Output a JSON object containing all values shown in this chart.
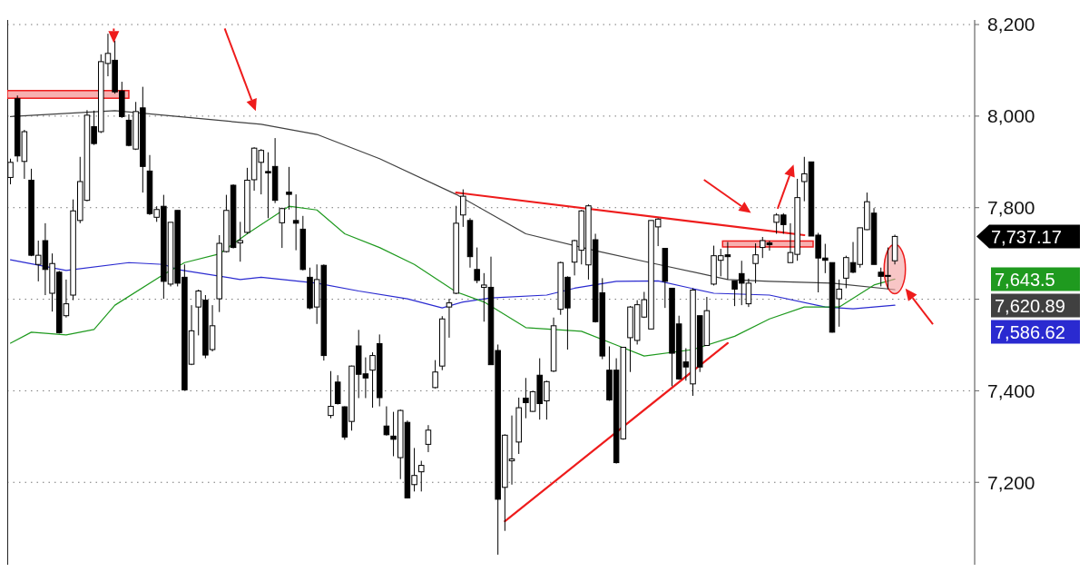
{
  "chart_data": {
    "type": "candlestick",
    "categories": [
      null,
      null,
      null,
      null,
      null,
      null,
      null,
      null,
      null,
      null,
      null,
      null,
      null,
      null,
      null,
      null,
      null,
      null,
      null,
      null,
      null,
      null,
      null,
      null,
      null,
      null,
      null,
      null,
      null,
      null,
      null,
      null,
      null,
      null,
      null,
      null,
      null,
      null,
      null,
      null,
      null,
      null,
      null,
      null,
      null,
      null,
      null,
      null,
      null,
      null,
      null,
      null,
      null,
      null,
      null,
      null,
      null,
      null,
      null,
      null,
      null,
      null,
      null,
      null,
      null,
      null,
      null,
      null,
      null,
      null,
      null,
      null,
      null,
      null,
      null,
      null,
      null,
      null,
      null,
      null,
      null,
      null,
      null,
      null,
      null,
      null,
      null,
      null,
      null,
      null,
      null,
      null,
      null,
      null,
      null,
      null,
      null,
      null,
      null,
      null,
      null,
      null,
      null,
      null,
      null,
      null,
      null,
      null,
      null,
      null,
      null,
      null,
      null,
      null,
      null,
      null,
      null,
      null,
      null,
      null,
      null,
      null,
      null,
      null,
      null,
      null,
      null,
      null,
      null,
      null,
      null,
      null,
      null,
      null,
      null,
      null,
      null,
      null,
      null
    ],
    "ohlc": [
      [
        7866,
        7907,
        7851,
        7899
      ],
      [
        8038,
        8045,
        7900,
        7913
      ],
      [
        7901,
        7970,
        7863,
        7966
      ],
      [
        7860,
        7885,
        7694,
        7696
      ],
      [
        7676,
        7728,
        7639,
        7696
      ],
      [
        7728,
        7766,
        7609,
        7665
      ],
      [
        7613,
        7700,
        7573,
        7678
      ],
      [
        7659,
        7662,
        7525,
        7527
      ],
      [
        7564,
        7643,
        7560,
        7590
      ],
      [
        7609,
        7818,
        7598,
        7793
      ],
      [
        7772,
        7911,
        7766,
        7857
      ],
      [
        7816,
        8013,
        7814,
        8002
      ],
      [
        7977,
        8012,
        7937,
        7940
      ],
      [
        7966,
        8135,
        7963,
        8119
      ],
      [
        8115,
        8180,
        8087,
        8137
      ],
      [
        8122,
        8165,
        8049,
        8053
      ],
      [
        8055,
        8075,
        7996,
        7999
      ],
      [
        7991,
        8004,
        7934,
        7936
      ],
      [
        7928,
        8031,
        7926,
        8010
      ],
      [
        8018,
        8064,
        7833,
        7890
      ],
      [
        7880,
        7915,
        7784,
        7787
      ],
      [
        7779,
        7803,
        7769,
        7796
      ],
      [
        7803,
        7828,
        7601,
        7639
      ],
      [
        7633,
        7768,
        7628,
        7768
      ],
      [
        7794,
        7794,
        7628,
        7635
      ],
      [
        7648,
        7676,
        7402,
        7402
      ],
      [
        7458,
        7587,
        7456,
        7531
      ],
      [
        7583,
        7621,
        7521,
        7618
      ],
      [
        7598,
        7609,
        7471,
        7478
      ],
      [
        7490,
        7587,
        7486,
        7542
      ],
      [
        7601,
        7740,
        7572,
        7722
      ],
      [
        7704,
        7828,
        7702,
        7794
      ],
      [
        7849,
        7851,
        7711,
        7713
      ],
      [
        7723,
        7769,
        7682,
        7728
      ],
      [
        7746,
        7887,
        7743,
        7860
      ],
      [
        7861,
        7932,
        7837,
        7930
      ],
      [
        7899,
        7928,
        7829,
        7925
      ],
      [
        7879,
        7921,
        7777,
        7876
      ],
      [
        7890,
        7952,
        7810,
        7816
      ],
      [
        7767,
        7800,
        7712,
        7798
      ],
      [
        7834,
        7889,
        7796,
        7829
      ],
      [
        7772,
        7829,
        7707,
        7766
      ],
      [
        7753,
        7782,
        7663,
        7665
      ],
      [
        7648,
        7669,
        7578,
        7581
      ],
      [
        7583,
        7676,
        7546,
        7643
      ],
      [
        7674,
        7676,
        7466,
        7477
      ],
      [
        7346,
        7443,
        7340,
        7366
      ],
      [
        7419,
        7434,
        7370,
        7372
      ],
      [
        7365,
        7366,
        7293,
        7299
      ],
      [
        7333,
        7455,
        7313,
        7454
      ],
      [
        7498,
        7533,
        7384,
        7436
      ],
      [
        7437,
        7473,
        7384,
        7428
      ],
      [
        7445,
        7484,
        7363,
        7477
      ],
      [
        7503,
        7523,
        7366,
        7385
      ],
      [
        7323,
        7366,
        7302,
        7304
      ],
      [
        7301,
        7354,
        7257,
        7294
      ],
      [
        7254,
        7359,
        7207,
        7357
      ],
      [
        7331,
        7335,
        7165,
        7166
      ],
      [
        7195,
        7275,
        7180,
        7215
      ],
      [
        7223,
        7247,
        7180,
        7237
      ],
      [
        7283,
        7325,
        7266,
        7314
      ],
      [
        7407,
        7467,
        7405,
        7441
      ],
      [
        7454,
        7563,
        7445,
        7557
      ],
      [
        7583,
        7601,
        7516,
        7592
      ],
      [
        7613,
        7804,
        7611,
        7766
      ],
      [
        7784,
        7840,
        7758,
        7825
      ],
      [
        7772,
        7777,
        7669,
        7693
      ],
      [
        7665,
        7713,
        7635,
        7641
      ],
      [
        7626,
        7657,
        7551,
        7631
      ],
      [
        7626,
        7693,
        7457,
        7457
      ],
      [
        7488,
        7501,
        7042,
        7163
      ],
      [
        7189,
        7305,
        7094,
        7303
      ],
      [
        7247,
        7346,
        7195,
        7251
      ],
      [
        7288,
        7385,
        7262,
        7363
      ],
      [
        7384,
        7428,
        7340,
        7374
      ],
      [
        7355,
        7398,
        7354,
        7398
      ],
      [
        7434,
        7471,
        7337,
        7372
      ],
      [
        7378,
        7422,
        7337,
        7420
      ],
      [
        7443,
        7560,
        7441,
        7542
      ],
      [
        7578,
        7682,
        7566,
        7680
      ],
      [
        7648,
        7650,
        7490,
        7581
      ],
      [
        7681,
        7730,
        7652,
        7728
      ],
      [
        7707,
        7795,
        7676,
        7793
      ],
      [
        7675,
        7807,
        7643,
        7804
      ],
      [
        7730,
        7743,
        7549,
        7551
      ],
      [
        7614,
        7646,
        7469,
        7476
      ],
      [
        7445,
        7497,
        7378,
        7380
      ],
      [
        7445,
        7471,
        7241,
        7243
      ],
      [
        7295,
        7495,
        7293,
        7495
      ],
      [
        7516,
        7585,
        7441,
        7583
      ],
      [
        7510,
        7598,
        7501,
        7588
      ],
      [
        7561,
        7616,
        7559,
        7599
      ],
      [
        7535,
        7772,
        7535,
        7772
      ],
      [
        7758,
        7777,
        7716,
        7775
      ],
      [
        7711,
        7711,
        7581,
        7639
      ],
      [
        7624,
        7624,
        7410,
        7482
      ],
      [
        7546,
        7564,
        7424,
        7426
      ],
      [
        7463,
        7493,
        7422,
        7452
      ],
      [
        7415,
        7624,
        7389,
        7620
      ],
      [
        7564,
        7564,
        7441,
        7452
      ],
      [
        7499,
        7605,
        7498,
        7575
      ],
      [
        7633,
        7717,
        7630,
        7695
      ],
      [
        7685,
        7710,
        7650,
        7695
      ],
      [
        7697,
        7725,
        7643,
        7693
      ],
      [
        7640,
        7640,
        7585,
        7622
      ],
      [
        7656,
        7684,
        7587,
        7635
      ],
      [
        7590,
        7645,
        7583,
        7635
      ],
      [
        7678,
        7722,
        7635,
        7697
      ],
      [
        7713,
        7736,
        7690,
        7728
      ],
      [
        7723,
        7728,
        7706,
        7719
      ],
      [
        7768,
        7788,
        7743,
        7784
      ],
      [
        7784,
        7788,
        7743,
        7763
      ],
      [
        7680,
        7766,
        7680,
        7702
      ],
      [
        7698,
        7863,
        7684,
        7822
      ],
      [
        7857,
        7911,
        7814,
        7874
      ],
      [
        7900,
        7900,
        7738,
        7738
      ],
      [
        7740,
        7745,
        7615,
        7690
      ],
      [
        7690,
        7721,
        7657,
        7685
      ],
      [
        7680,
        7680,
        7527,
        7528
      ],
      [
        7601,
        7643,
        7540,
        7622
      ],
      [
        7646,
        7695,
        7624,
        7691
      ],
      [
        7680,
        7725,
        7657,
        7659
      ],
      [
        7676,
        7756,
        7669,
        7756
      ],
      [
        7752,
        7833,
        7751,
        7813
      ],
      [
        7788,
        7799,
        7676,
        7676
      ],
      [
        7659,
        7669,
        7628,
        7650
      ],
      [
        7652,
        7713,
        7622,
        7650
      ],
      [
        7684,
        7741,
        7676,
        7737.17
      ],
      null,
      null,
      null,
      null,
      null,
      null,
      null,
      null,
      null,
      null,
      null
    ],
    "series": [
      {
        "type": "line",
        "color": "#404040",
        "values": [
          7999,
          null,
          null,
          null,
          null,
          null,
          null,
          null,
          null,
          null,
          null,
          null,
          null,
          null,
          null,
          8012,
          null,
          null,
          null,
          null,
          null,
          null,
          null,
          null,
          null,
          null,
          null,
          null,
          null,
          null,
          null,
          null,
          null,
          null,
          null,
          null,
          7982,
          null,
          null,
          null,
          null,
          null,
          null,
          null,
          7960,
          null,
          null,
          null,
          null,
          null,
          null,
          null,
          null,
          7907,
          null,
          null,
          null,
          null,
          null,
          null,
          null,
          null,
          null,
          null,
          7829,
          null,
          null,
          null,
          null,
          null,
          null,
          null,
          null,
          null,
          7743,
          null,
          null,
          null,
          null,
          null,
          null,
          null,
          null,
          null,
          7706,
          null,
          null,
          null,
          null,
          null,
          null,
          null,
          null,
          7676,
          null,
          null,
          null,
          null,
          null,
          null,
          null,
          null,
          null,
          7643,
          null,
          null,
          null,
          null,
          null,
          7639,
          null,
          null,
          null,
          null,
          null,
          null,
          null,
          null,
          7635,
          null,
          null,
          null,
          null,
          null,
          null,
          null,
          null,
          7621,
          null,
          null,
          null,
          null,
          null,
          null,
          null,
          null,
          null,
          null,
          null
        ]
      },
      {
        "type": "line",
        "color": "#2a2ad0",
        "values": [
          7686,
          null,
          null,
          null,
          null,
          null,
          null,
          null,
          7663,
          null,
          null,
          null,
          null,
          null,
          null,
          null,
          null,
          7680,
          null,
          null,
          null,
          null,
          7676,
          null,
          7665,
          null,
          null,
          null,
          null,
          null,
          null,
          null,
          null,
          7643,
          null,
          null,
          7648,
          null,
          null,
          null,
          null,
          null,
          null,
          null,
          7635,
          null,
          null,
          null,
          null,
          null,
          7618,
          null,
          null,
          null,
          null,
          null,
          null,
          7601,
          null,
          null,
          null,
          null,
          7581,
          null,
          null,
          7594,
          null,
          null,
          null,
          7603,
          null,
          null,
          null,
          null,
          null,
          null,
          null,
          7609,
          null,
          null,
          null,
          7624,
          null,
          null,
          null,
          null,
          null,
          7639,
          null,
          null,
          null,
          null,
          null,
          7640,
          null,
          null,
          null,
          null,
          null,
          null,
          null,
          7613,
          null,
          null,
          null,
          null,
          null,
          null,
          null,
          7609,
          null,
          null,
          null,
          null,
          null,
          null,
          null,
          7583,
          null,
          null,
          null,
          7579,
          null,
          null,
          null,
          null,
          null,
          7587,
          null,
          null,
          null,
          null,
          null,
          null,
          null,
          null,
          null,
          null,
          null
        ]
      },
      {
        "type": "line",
        "color": "#1f9a1f",
        "values": [
          7504,
          null,
          null,
          7528,
          null,
          null,
          null,
          null,
          7522,
          null,
          null,
          null,
          7534,
          null,
          null,
          7587,
          null,
          null,
          null,
          null,
          null,
          null,
          7654,
          null,
          null,
          7680,
          null,
          null,
          null,
          null,
          7699,
          null,
          null,
          null,
          7743,
          null,
          null,
          null,
          null,
          null,
          7803,
          null,
          null,
          null,
          7795,
          null,
          null,
          null,
          7743,
          null,
          null,
          null,
          null,
          7713,
          null,
          null,
          null,
          null,
          7676,
          null,
          null,
          null,
          null,
          null,
          7616,
          null,
          null,
          null,
          7594,
          null,
          null,
          null,
          null,
          null,
          7538,
          null,
          null,
          null,
          null,
          null,
          null,
          null,
          7530,
          null,
          null,
          null,
          null,
          7500,
          null,
          null,
          null,
          7476,
          null,
          null,
          null,
          null,
          null,
          null,
          7490,
          null,
          null,
          null,
          null,
          null,
          7519,
          null,
          null,
          null,
          null,
          7557,
          null,
          null,
          null,
          null,
          7583,
          null,
          null,
          null,
          null,
          7583,
          null,
          null,
          null,
          null,
          7631,
          null,
          null,
          7644,
          null,
          null,
          null,
          null,
          null,
          null,
          null,
          null,
          null,
          null,
          null
        ]
      },
      {
        "type": "line",
        "color": "#ee1c1c",
        "values": [
          null,
          null,
          null,
          null,
          null,
          null,
          null,
          null,
          null,
          null,
          null,
          null,
          null,
          null,
          null,
          null,
          null,
          null,
          null,
          null,
          null,
          null,
          null,
          null,
          null,
          null,
          null,
          null,
          null,
          null,
          null,
          null,
          null,
          null,
          null,
          null,
          null,
          null,
          null,
          null,
          null,
          null,
          null,
          null,
          null,
          null,
          null,
          null,
          null,
          null,
          null,
          null,
          null,
          null,
          null,
          null,
          null,
          null,
          null,
          null,
          null,
          null,
          null,
          null,
          7833,
          null,
          null,
          null,
          null,
          null,
          null,
          null,
          null,
          null,
          null,
          null,
          null,
          null,
          null,
          null,
          null,
          null,
          null,
          null,
          null,
          null,
          null,
          null,
          null,
          null,
          null,
          null,
          null,
          null,
          null,
          null,
          null,
          null,
          null,
          null,
          null,
          null,
          null,
          null,
          null,
          null,
          null,
          null,
          null,
          null,
          null,
          null,
          null,
          null,
          7740,
          null,
          null,
          null,
          null,
          null,
          null,
          null,
          null,
          null,
          null,
          null,
          null,
          null,
          null,
          null,
          null,
          null,
          null,
          null,
          null,
          null,
          null,
          null,
          null
        ]
      },
      {
        "type": "line",
        "color": "#ee1c1c",
        "values": [
          null,
          null,
          null,
          null,
          null,
          null,
          null,
          null,
          null,
          null,
          null,
          null,
          null,
          null,
          null,
          null,
          null,
          null,
          null,
          null,
          null,
          null,
          null,
          null,
          null,
          null,
          null,
          null,
          null,
          null,
          null,
          null,
          null,
          null,
          null,
          null,
          null,
          null,
          null,
          null,
          null,
          null,
          null,
          null,
          null,
          null,
          null,
          null,
          null,
          null,
          null,
          null,
          null,
          null,
          null,
          null,
          null,
          null,
          null,
          null,
          null,
          null,
          null,
          null,
          null,
          null,
          null,
          null,
          null,
          null,
          null,
          7115,
          null,
          null,
          null,
          null,
          null,
          null,
          null,
          null,
          null,
          null,
          null,
          null,
          null,
          null,
          null,
          null,
          null,
          null,
          null,
          null,
          null,
          null,
          null,
          null,
          null,
          null,
          null,
          null,
          null,
          null,
          null,
          7504,
          null,
          null,
          null,
          null,
          null,
          null,
          null,
          null,
          null,
          null,
          null,
          null,
          null,
          null,
          null,
          null,
          null,
          null,
          null,
          null,
          null,
          null,
          null,
          null,
          null,
          null,
          null,
          null,
          null,
          null,
          null,
          null,
          null,
          null,
          null
        ]
      }
    ],
    "ylim": [
      7020,
      8210
    ],
    "yticks": [
      {
        "value": 7200,
        "label": "7,200"
      },
      {
        "value": 7400,
        "label": "7,400"
      },
      {
        "value": 7600,
        "label": null
      },
      {
        "value": 7800,
        "label": "7,800"
      },
      {
        "value": 8000,
        "label": "8,000"
      },
      {
        "value": 8200,
        "label": "8,200"
      }
    ],
    "grid": "y",
    "annotations": [
      "7,737.17",
      "7,643.5",
      "7,620.89",
      "7,586.62"
    ]
  }
}
